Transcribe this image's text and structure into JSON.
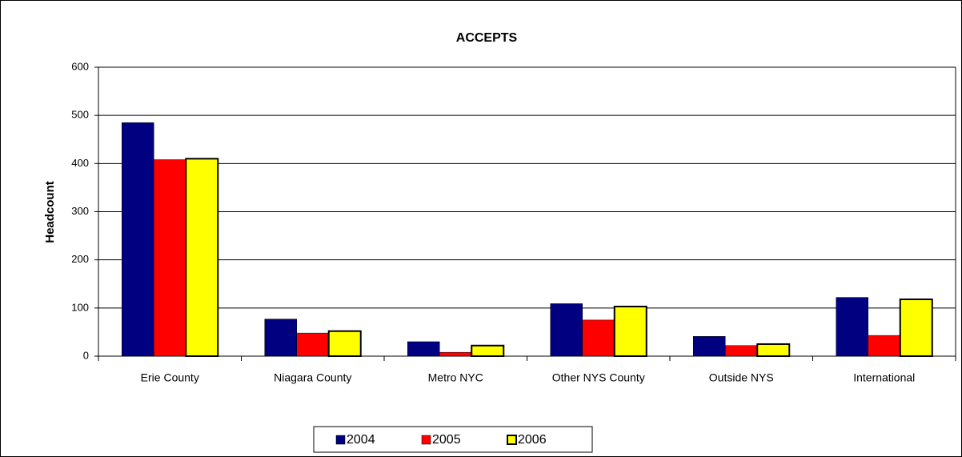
{
  "chart_data": {
    "type": "bar",
    "title": "ACCEPTS",
    "y_label": "Headcount",
    "categories": [
      "Erie County",
      "Niagara County",
      "Metro NYC",
      "Other NYS County",
      "Outside NYS",
      "International"
    ],
    "series": [
      {
        "name": "2004",
        "color": "#000080",
        "values": [
          485,
          77,
          30,
          109,
          41,
          122
        ]
      },
      {
        "name": "2005",
        "color": "#ff0000",
        "values": [
          408,
          48,
          8,
          75,
          22,
          43
        ]
      },
      {
        "name": "2006",
        "color": "#ffff00",
        "values": [
          410,
          52,
          22,
          103,
          25,
          118
        ]
      }
    ],
    "ylim": [
      0,
      600
    ],
    "yticks": [
      0,
      100,
      200,
      300,
      400,
      500,
      600
    ],
    "grid": true,
    "legend": "bottom"
  }
}
